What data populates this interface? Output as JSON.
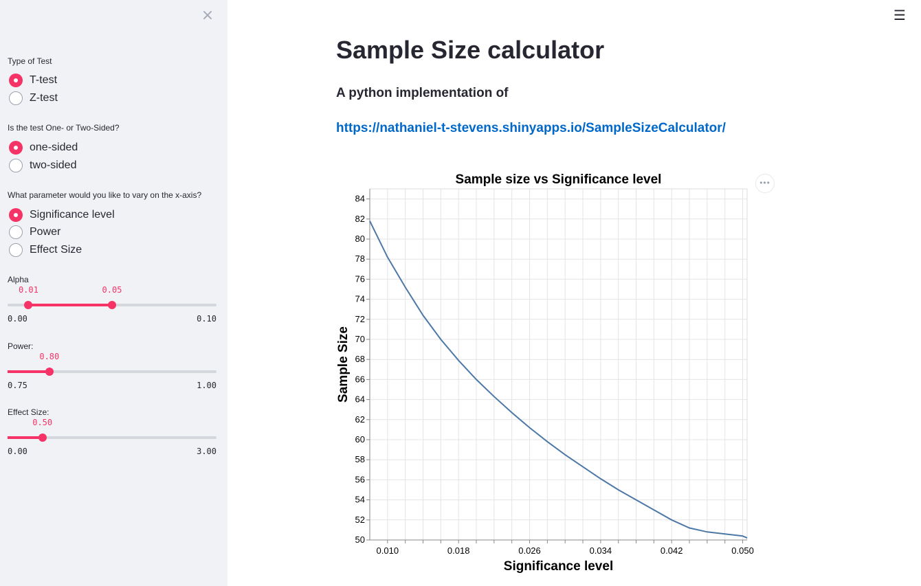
{
  "sidebar": {
    "close_icon": "×",
    "test_type": {
      "label": "Type of Test",
      "options": [
        "T-test",
        "Z-test"
      ],
      "selected": "T-test"
    },
    "sidedness": {
      "label": "Is the test One- or Two-Sided?",
      "options": [
        "one-sided",
        "two-sided"
      ],
      "selected": "one-sided"
    },
    "x_param": {
      "label": "What parameter would you like to vary on the x-axis?",
      "options": [
        "Significance level",
        "Power",
        "Effect Size"
      ],
      "selected": "Significance level"
    },
    "alpha": {
      "label": "Alpha",
      "low": "0.01",
      "high": "0.05",
      "min": "0.00",
      "max": "0.10",
      "low_frac": 0.1,
      "high_frac": 0.5
    },
    "power": {
      "label": "Power:",
      "value": "0.80",
      "min": "0.75",
      "max": "1.00",
      "frac": 0.2
    },
    "effect": {
      "label": "Effect Size:",
      "value": "0.50",
      "min": "0.00",
      "max": "3.00",
      "frac": 0.1667
    }
  },
  "main": {
    "menu_icon": "☰",
    "title": "Sample Size calculator",
    "subtitle": "A python implementation of",
    "link": "https://nathaniel-t-stevens.shinyapps.io/SampleSizeCalculator/",
    "chart_menu_icon": "•••"
  },
  "colors": {
    "accent": "#f63366",
    "link": "#0068c9",
    "line": "#4c78a8",
    "sidebar_bg": "#f0f2f6"
  },
  "chart_data": {
    "type": "line",
    "title": "Sample size vs Significance level",
    "xlabel": "Significance level",
    "ylabel": "Sample Size",
    "xlim": [
      0.008,
      0.0505
    ],
    "ylim": [
      50,
      85
    ],
    "x_ticks": [
      "0.010",
      "0.018",
      "0.026",
      "0.034",
      "0.042",
      "0.050"
    ],
    "y_ticks": [
      "50",
      "52",
      "54",
      "56",
      "58",
      "60",
      "62",
      "64",
      "66",
      "68",
      "70",
      "72",
      "74",
      "76",
      "78",
      "80",
      "82",
      "84"
    ],
    "grid": true,
    "series": [
      {
        "x": [
          0.008,
          0.01,
          0.012,
          0.014,
          0.016,
          0.018,
          0.02,
          0.022,
          0.024,
          0.026,
          0.028,
          0.03,
          0.032,
          0.034,
          0.036,
          0.038,
          0.04,
          0.042,
          0.044,
          0.046,
          0.048,
          0.05,
          0.0505
        ],
        "y": [
          81.8,
          78.2,
          75.2,
          72.4,
          70.0,
          67.9,
          66.0,
          64.3,
          62.7,
          61.2,
          59.8,
          58.5,
          57.3,
          56.1,
          55.0,
          54.0,
          53.0,
          52.0,
          51.2,
          50.8,
          50.6,
          50.4,
          50.2
        ]
      }
    ]
  }
}
